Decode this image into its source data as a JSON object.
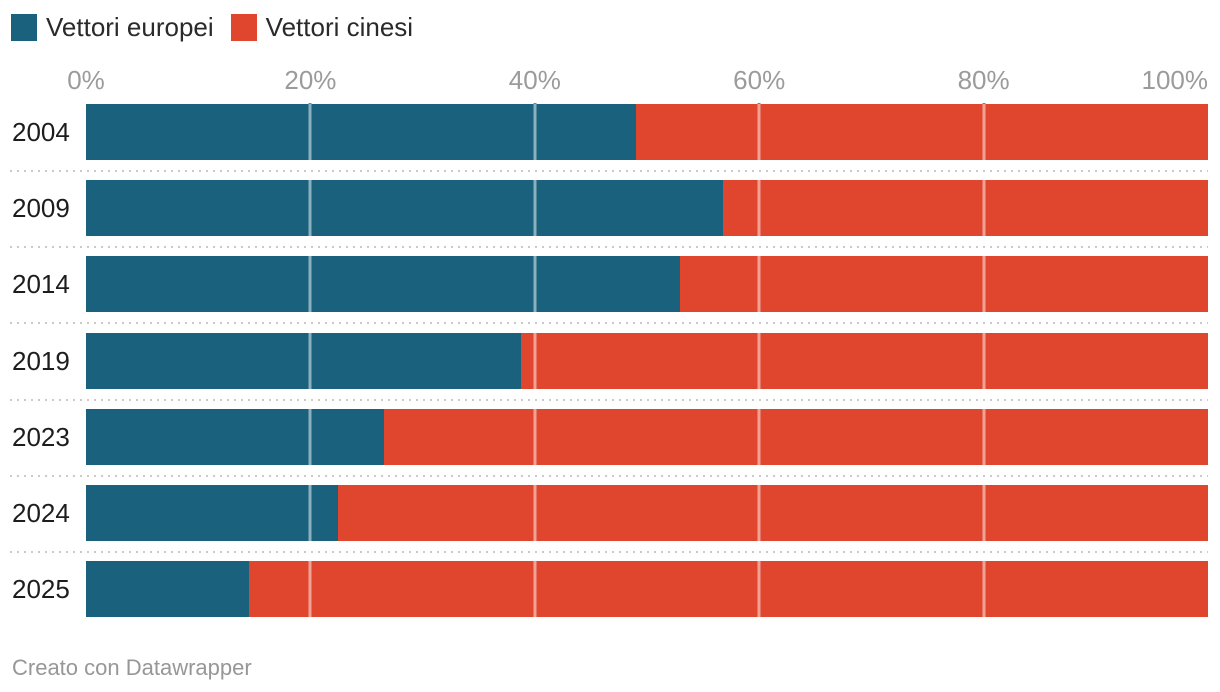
{
  "chart_data": {
    "type": "bar",
    "stacked": true,
    "orientation": "horizontal",
    "title": "",
    "xlabel": "",
    "ylabel": "",
    "categories": [
      "2004",
      "2009",
      "2014",
      "2019",
      "2023",
      "2024",
      "2025"
    ],
    "series": [
      {
        "name": "Vettori europei",
        "color": "#19617c",
        "values": [
          49.0,
          56.8,
          52.9,
          38.8,
          26.6,
          22.5,
          14.5
        ]
      },
      {
        "name": "Vettori cinesi",
        "color": "#e0452e",
        "values": [
          51.0,
          43.2,
          47.1,
          61.2,
          73.4,
          77.5,
          85.5
        ]
      }
    ],
    "axis": {
      "xlim": [
        0,
        100
      ],
      "ticks": [
        0,
        20,
        40,
        60,
        80,
        100
      ],
      "tick_labels": [
        "0%",
        "20%",
        "40%",
        "60%",
        "80%",
        "100%"
      ],
      "grid": true,
      "gridline_ticks": [
        20,
        40,
        60,
        80
      ],
      "legend_position": "top"
    }
  },
  "legend": {
    "items": [
      {
        "label": "Vettori europei",
        "color": "#19617c"
      },
      {
        "label": "Vettori cinesi",
        "color": "#e0452e"
      }
    ]
  },
  "footer": {
    "attribution": "Creato con Datawrapper"
  },
  "colors": {
    "european": "#19617c",
    "chinese": "#e0452e",
    "axis_label": "#9b9b9b",
    "row_label": "#1d1d1d",
    "separator": "#cacaca",
    "background": "#ffffff"
  }
}
